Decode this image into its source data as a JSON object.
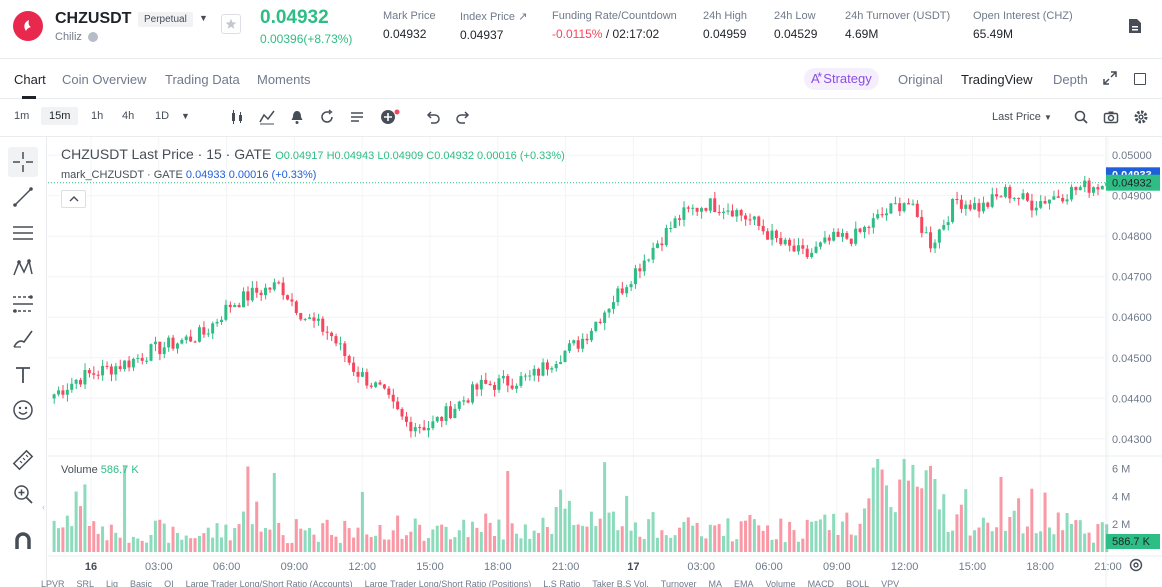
{
  "ticker": {
    "symbol": "CHZUSDT",
    "badge": "Perpetual",
    "name": "Chiliz",
    "last_price": "0.04932",
    "change": "0.00396(+8.73%)"
  },
  "stats": [
    {
      "label": "Mark Price",
      "value": "0.04932"
    },
    {
      "label": "Index Price ↗",
      "value": "0.04937"
    },
    {
      "label": "Funding Rate/Countdown",
      "value_neg": "-0.0115%",
      "value": "/ 02:17:02"
    },
    {
      "label": "24h High",
      "value": "0.04959"
    },
    {
      "label": "24h Low",
      "value": "0.04529"
    },
    {
      "label": "24h Turnover (USDT)",
      "value": "4.69M"
    },
    {
      "label": "Open Interest (CHZ)",
      "value": "65.49M"
    }
  ],
  "tabs": [
    "Chart",
    "Coin Overview",
    "Trading Data",
    "Moments"
  ],
  "strategy_label": "Strategy",
  "views": [
    "Original",
    "TradingView",
    "Depth"
  ],
  "intervals": [
    "1m",
    "15m",
    "1h",
    "4h",
    "1D"
  ],
  "price_type": "Last Price",
  "legend": {
    "title": "CHZUSDT Last Price · 15 · GATE",
    "ohlc": "O0.04917 H0.04943 L0.04909 C0.04932 0.00016 (+0.33%)",
    "mark_name": "mark_CHZUSDT · GATE",
    "mark_values": "0.04933 0.00016 (+0.33%)",
    "volume_label": "Volume",
    "volume_value": "586.7 K"
  },
  "colors": {
    "up": "#2ebd85",
    "down": "#f6465d",
    "accent": "#8a4de8",
    "mark_blue": "#1f5fd9"
  },
  "chart_data": {
    "type": "candlestick",
    "price_axis_ticks": [
      "0.05000",
      "0.04900",
      "0.04800",
      "0.04700",
      "0.04600",
      "0.04500",
      "0.04400",
      "0.04300"
    ],
    "price_axis_values": [
      0.05,
      0.049,
      0.048,
      0.047,
      0.046,
      0.045,
      0.044,
      0.043
    ],
    "price_range": [
      0.0426,
      0.0503
    ],
    "badges": {
      "mark": "0.04933",
      "last": "0.04932"
    },
    "volume_axis_ticks": [
      "6 M",
      "4 M",
      "2 M"
    ],
    "volume_axis_values": [
      6000000,
      4000000,
      2000000
    ],
    "volume_max": 6700000,
    "volume_badge": "586.7 K",
    "time_ticks": [
      "16",
      "03:00",
      "06:00",
      "09:00",
      "12:00",
      "15:00",
      "18:00",
      "21:00",
      "17",
      "03:00",
      "06:00",
      "09:00",
      "12:00",
      "15:00",
      "18:00",
      "21:00"
    ],
    "time_tick_bold": [
      true,
      false,
      false,
      false,
      false,
      false,
      false,
      false,
      true,
      false,
      false,
      false,
      false,
      false,
      false,
      false
    ],
    "close_path": [
      0.0441,
      0.0445,
      0.0447,
      0.0449,
      0.0452,
      0.0454,
      0.0456,
      0.0463,
      0.0466,
      0.0468,
      0.046,
      0.0456,
      0.0447,
      0.0442,
      0.0434,
      0.0433,
      0.0438,
      0.0443,
      0.0444,
      0.0445,
      0.045,
      0.0454,
      0.0462,
      0.047,
      0.0478,
      0.0485,
      0.0488,
      0.0487,
      0.0483,
      0.0478,
      0.0475,
      0.0479,
      0.048,
      0.0485,
      0.0489,
      0.0478,
      0.0489,
      0.0487,
      0.0491,
      0.0488,
      0.049,
      0.0492,
      0.0493
    ],
    "volume_profile": [
      0.3,
      0.8,
      0.3,
      0.25,
      0.3,
      0.2,
      0.25,
      0.3,
      0.5,
      0.25,
      0.3,
      0.3,
      0.25,
      0.3,
      0.35,
      0.25,
      0.3,
      0.4,
      0.3,
      0.3,
      0.4,
      0.5,
      0.45,
      0.4,
      0.35,
      0.3,
      0.3,
      0.3,
      0.35,
      0.3,
      0.3,
      0.35,
      0.4,
      0.9,
      1.0,
      0.8,
      0.45,
      0.35,
      0.4,
      0.55,
      0.5,
      0.3,
      0.25
    ]
  },
  "indicators": [
    "LPVR",
    "SRL",
    "Liq",
    "Basic",
    "OI",
    "Large Trader Long/Short Ratio (Accounts)",
    "Large Trader Long/Short Ratio (Positions)",
    "L.S Ratio",
    "Taker B.S Vol.",
    "Turnover",
    "MA",
    "EMA",
    "Volume",
    "MACD",
    "BOLL",
    "VPV"
  ]
}
